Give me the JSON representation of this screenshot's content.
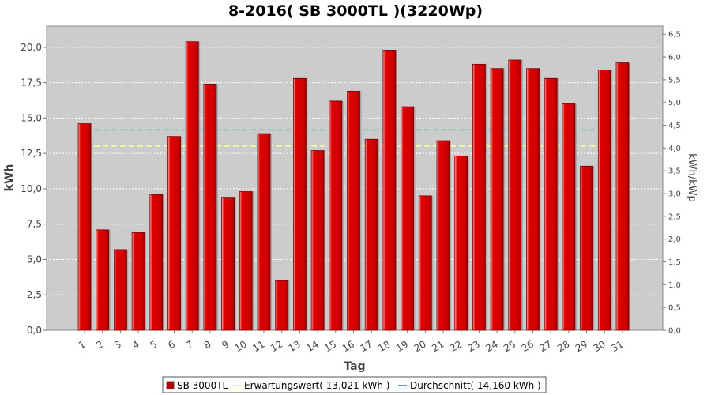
{
  "chart_data": {
    "type": "bar",
    "title": "8-2016( SB 3000TL )(3220Wp)",
    "xlabel": "Tag",
    "ylabel": "kWh",
    "y2label": "kWh/kWp",
    "categories": [
      "1",
      "2",
      "3",
      "4",
      "5",
      "6",
      "7",
      "8",
      "9",
      "10",
      "11",
      "12",
      "13",
      "14",
      "15",
      "16",
      "17",
      "18",
      "19",
      "20",
      "21",
      "22",
      "23",
      "24",
      "25",
      "26",
      "27",
      "28",
      "29",
      "30",
      "31"
    ],
    "series": [
      {
        "name": "SB 3000TL",
        "values": [
          14.6,
          7.1,
          5.7,
          6.9,
          9.6,
          13.7,
          20.4,
          17.4,
          9.4,
          9.8,
          13.9,
          3.5,
          17.8,
          12.7,
          16.2,
          16.9,
          13.5,
          19.8,
          15.8,
          9.5,
          13.4,
          12.3,
          18.8,
          18.5,
          19.1,
          18.5,
          17.8,
          16.0,
          11.6,
          18.4,
          18.9
        ]
      }
    ],
    "reference_lines": [
      {
        "name": "Erwartungswert( 13,021 kWh )",
        "value": 13.021,
        "color": "#ffff99",
        "style": "dashed"
      },
      {
        "name": "Durchschnitt( 14,160 kWh )",
        "value": 14.16,
        "color": "#33b3b3",
        "style": "dashed"
      }
    ],
    "ylim": [
      0,
      21.5
    ],
    "yticks": [
      "0,0",
      "2,5",
      "5,0",
      "7,5",
      "10,0",
      "12,5",
      "15,0",
      "17,5",
      "20,0"
    ],
    "y2lim": [
      0,
      6.677
    ],
    "y2ticks": [
      "0,0",
      "0,5",
      "1,0",
      "1,5",
      "2,0",
      "2,5",
      "3,0",
      "3,5",
      "4,0",
      "4,5",
      "5,0",
      "5,5",
      "6,0",
      "6,5"
    ],
    "colors": {
      "bar": "#e00000",
      "bar_highlight": "#ff5a5a",
      "bar_edge": "#800000",
      "plot_bg": "#cccccc",
      "grid": "#ffffff"
    },
    "grid": true,
    "legend_position": "bottom"
  },
  "legend": {
    "bar_label": "SB 3000TL",
    "line1_label": "Erwartungswert( 13,021 kWh )",
    "line2_label": "Durchschnitt( 14,160 kWh )"
  }
}
